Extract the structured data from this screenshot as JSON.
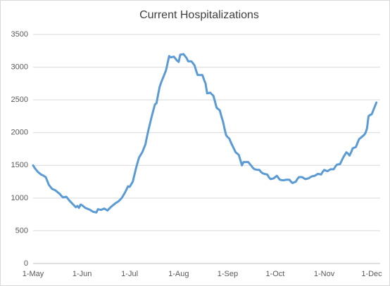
{
  "chart_data": {
    "type": "line",
    "title": "Current Hospitalizations",
    "categories": [
      "1-May",
      null,
      null,
      null,
      null,
      null,
      null,
      null,
      null,
      null,
      null,
      null,
      null,
      null,
      null,
      null,
      null,
      null,
      null,
      null,
      null,
      null,
      null,
      null,
      null,
      null,
      null,
      null,
      null,
      null,
      null,
      "1-Jun",
      null,
      null,
      null,
      null,
      null,
      null,
      null,
      null,
      null,
      null,
      null,
      null,
      null,
      null,
      null,
      null,
      null,
      null,
      null,
      null,
      null,
      null,
      null,
      null,
      null,
      null,
      null,
      null,
      null,
      "1-Jul",
      null,
      null,
      null,
      null,
      null,
      null,
      null,
      null,
      null,
      null,
      null,
      null,
      null,
      null,
      null,
      null,
      null,
      null,
      null,
      null,
      null,
      null,
      null,
      null,
      null,
      null,
      null,
      null,
      null,
      null,
      "1-Aug",
      null,
      null,
      null,
      null,
      null,
      null,
      null,
      null,
      null,
      null,
      null,
      null,
      null,
      null,
      null,
      null,
      null,
      null,
      null,
      null,
      null,
      null,
      null,
      null,
      null,
      null,
      null,
      null,
      null,
      null,
      "1-Sep",
      null,
      null,
      null,
      null,
      null,
      null,
      null,
      null,
      null,
      null,
      null,
      null,
      null,
      null,
      null,
      null,
      null,
      null,
      null,
      null,
      null,
      null,
      null,
      null,
      null,
      null,
      null,
      null,
      null,
      "1-Oct",
      null,
      null,
      null,
      null,
      null,
      null,
      null,
      null,
      null,
      null,
      null,
      null,
      null,
      null,
      null,
      null,
      null,
      null,
      null,
      null,
      null,
      null,
      null,
      null,
      null,
      null,
      null,
      null,
      null,
      null,
      "1-Nov",
      null,
      null,
      null,
      null,
      null,
      null,
      null,
      null,
      null,
      null,
      null,
      null,
      null,
      null,
      null,
      null,
      null,
      null,
      null,
      null,
      null,
      null,
      null,
      null,
      null,
      null,
      null,
      null,
      null,
      "1-Dec",
      null,
      null,
      null
    ],
    "series": [
      {
        "name": "Current Hospitalizations",
        "color": "#5b9bd5",
        "values": [
          1500,
          1460,
          1430,
          1400,
          1380,
          1360,
          1350,
          1335,
          1320,
          1260,
          1200,
          1170,
          1140,
          1130,
          1120,
          1100,
          1080,
          1060,
          1030,
          1010,
          1015,
          1020,
          990,
          960,
          935,
          910,
          885,
          860,
          880,
          850,
          900,
          890,
          870,
          850,
          840,
          830,
          820,
          805,
          790,
          785,
          780,
          830,
          825,
          820,
          830,
          840,
          825,
          810,
          835,
          860,
          880,
          900,
          920,
          935,
          950,
          975,
          1000,
          1040,
          1080,
          1130,
          1180,
          1170,
          1210,
          1250,
          1350,
          1450,
          1540,
          1620,
          1660,
          1700,
          1760,
          1820,
          1940,
          2050,
          2150,
          2250,
          2340,
          2430,
          2450,
          2580,
          2700,
          2770,
          2830,
          2890,
          2950,
          3060,
          3170,
          3150,
          3155,
          3160,
          3130,
          3100,
          3080,
          3190,
          3195,
          3200,
          3170,
          3140,
          3090,
          3090,
          3090,
          3060,
          3030,
          2950,
          2880,
          2880,
          2880,
          2880,
          2810,
          2750,
          2600,
          2605,
          2610,
          2585,
          2560,
          2470,
          2380,
          2360,
          2340,
          2250,
          2170,
          2060,
          1960,
          1930,
          1910,
          1850,
          1800,
          1750,
          1700,
          1680,
          1660,
          1580,
          1500,
          1550,
          1550,
          1550,
          1550,
          1520,
          1490,
          1460,
          1440,
          1435,
          1430,
          1430,
          1400,
          1380,
          1370,
          1365,
          1360,
          1320,
          1290,
          1295,
          1300,
          1320,
          1340,
          1310,
          1280,
          1275,
          1270,
          1275,
          1280,
          1280,
          1280,
          1250,
          1230,
          1240,
          1250,
          1290,
          1320,
          1320,
          1320,
          1305,
          1290,
          1295,
          1300,
          1315,
          1330,
          1335,
          1340,
          1355,
          1370,
          1365,
          1360,
          1400,
          1430,
          1420,
          1410,
          1425,
          1440,
          1440,
          1440,
          1480,
          1510,
          1515,
          1520,
          1570,
          1620,
          1660,
          1700,
          1680,
          1650,
          1700,
          1760,
          1770,
          1780,
          1840,
          1900,
          1920,
          1940,
          1960,
          1990,
          2060,
          2250,
          2270,
          2280,
          2340,
          2400,
          2460
        ]
      }
    ],
    "ylim": [
      0,
      3500
    ],
    "yticks": [
      0,
      500,
      1000,
      1500,
      2000,
      2500,
      3000,
      3500
    ],
    "grid": true
  }
}
